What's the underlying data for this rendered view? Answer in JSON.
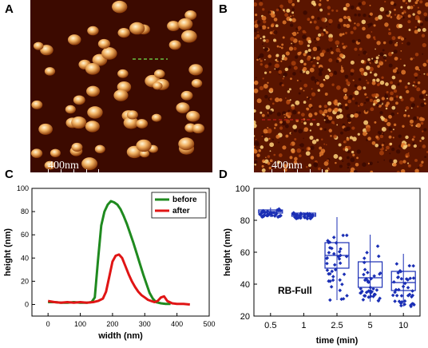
{
  "panels": {
    "A": {
      "letter": "A",
      "scale_label": "400nm"
    },
    "B": {
      "letter": "B",
      "scale_label": "400nm"
    },
    "C": {
      "letter": "C"
    },
    "D": {
      "letter": "D"
    }
  },
  "chart_data": [
    {
      "type": "line",
      "panel": "C",
      "xlabel": "width (nm)",
      "ylabel": "height (nm)",
      "xlim": [
        -50,
        500
      ],
      "ylim": [
        -10,
        100
      ],
      "xticks": [
        0,
        100,
        200,
        300,
        400,
        500
      ],
      "yticks": [
        0,
        20,
        40,
        60,
        80,
        100
      ],
      "grid": false,
      "legend": "top-right",
      "colors": {
        "before": "#1f8a1f",
        "after": "#e01515"
      },
      "series": [
        {
          "name": "before",
          "x": [
            0,
            20,
            40,
            60,
            80,
            100,
            120,
            135,
            145,
            155,
            165,
            175,
            185,
            195,
            205,
            215,
            225,
            235,
            245,
            255,
            265,
            275,
            285,
            295,
            305,
            315,
            325,
            335,
            350,
            365,
            380
          ],
          "y": [
            2,
            2,
            1.5,
            1.5,
            2,
            1.5,
            1.5,
            2,
            6,
            38,
            68,
            80,
            86,
            89,
            88,
            86,
            82,
            76,
            69,
            61,
            53,
            44,
            35,
            26,
            18,
            10,
            5,
            2,
            1,
            0.5,
            0.5
          ]
        },
        {
          "name": "after",
          "x": [
            0,
            20,
            40,
            60,
            80,
            100,
            120,
            140,
            155,
            170,
            180,
            190,
            200,
            210,
            220,
            230,
            240,
            250,
            260,
            270,
            280,
            290,
            300,
            310,
            320,
            330,
            340,
            350,
            360,
            370,
            385,
            400,
            420,
            440
          ],
          "y": [
            3,
            2,
            1.5,
            2,
            1.5,
            2,
            1.5,
            2,
            3,
            5,
            11,
            24,
            37,
            42,
            43,
            40,
            33,
            26,
            20,
            15,
            11,
            8,
            6,
            4,
            3,
            2,
            3,
            6,
            7,
            3,
            1,
            0.5,
            0.5,
            0
          ]
        }
      ]
    },
    {
      "type": "box",
      "panel": "D",
      "xlabel": "time (min)",
      "ylabel": "height (nm)",
      "ylim": [
        20,
        100
      ],
      "yticks": [
        20,
        40,
        60,
        80,
        100
      ],
      "categories": [
        "0.5",
        "1",
        "2.5",
        "5",
        "10"
      ],
      "annotation": "RB-Full",
      "color": "#1b2fb5",
      "boxes": [
        {
          "category": "0.5",
          "q1": 84.5,
          "median": 85.5,
          "q3": 86.5,
          "min": 82,
          "max": 88
        },
        {
          "category": "1",
          "q1": 82.5,
          "median": 83.5,
          "q3": 84.5,
          "min": 81,
          "max": 85
        },
        {
          "category": "2.5",
          "q1": 50,
          "median": 58,
          "q3": 66,
          "min": 30,
          "max": 82
        },
        {
          "category": "5",
          "q1": 38,
          "median": 44,
          "q3": 54,
          "min": 29,
          "max": 71
        },
        {
          "category": "10",
          "q1": 36,
          "median": 41,
          "q3": 48,
          "min": 26,
          "max": 59
        }
      ]
    }
  ]
}
